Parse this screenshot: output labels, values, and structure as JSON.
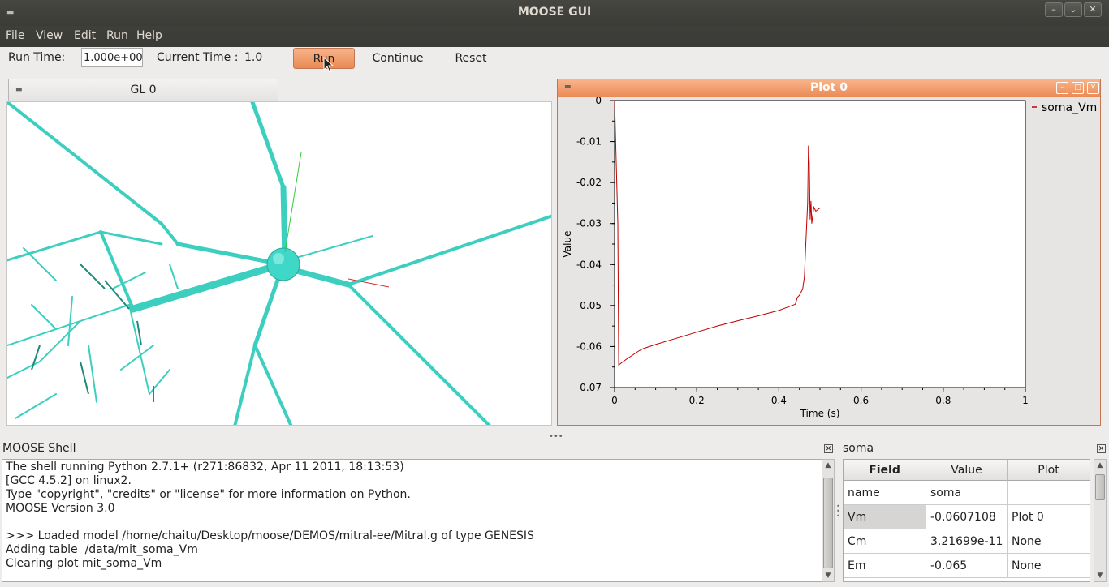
{
  "window": {
    "title": "MOOSE GUI",
    "min": "–",
    "max": "⌄",
    "close": "✕"
  },
  "menu": [
    "File",
    "View",
    "Edit",
    "Run",
    "Help"
  ],
  "toolbar": {
    "run_time_label": "Run Time:",
    "run_time_value": "1.000e+00",
    "current_time_label": "Current Time :",
    "current_time_value": "1.0",
    "run": "Run",
    "continue": "Continue",
    "reset": "Reset"
  },
  "gl": {
    "tab_label": "GL 0"
  },
  "plot": {
    "window_title": "Plot 0"
  },
  "chart_data": {
    "type": "line",
    "title": "",
    "xlabel": "Time (s)",
    "ylabel": "Value",
    "xlim": [
      0,
      1
    ],
    "ylim": [
      -0.07,
      0
    ],
    "xticks": [
      "0",
      "0.2",
      "0.4",
      "0.6",
      "0.8",
      "1"
    ],
    "yticks": [
      "0",
      "-0.01",
      "-0.02",
      "-0.03",
      "-0.04",
      "-0.05",
      "-0.06",
      "-0.07"
    ],
    "grid": false,
    "legend_position": "right",
    "colors": {
      "series": "#c00000"
    },
    "series": [
      {
        "name": "soma_Vm",
        "x": [
          0.0,
          0.008,
          0.01,
          0.03,
          0.06,
          0.07,
          0.1,
          0.15,
          0.2,
          0.25,
          0.3,
          0.35,
          0.4,
          0.44,
          0.445,
          0.45,
          0.458,
          0.462,
          0.465,
          0.47,
          0.472,
          0.474,
          0.476,
          0.478,
          0.48,
          0.485,
          0.49,
          0.5,
          0.52,
          0.55,
          0.6,
          0.7,
          0.8,
          0.9,
          1.0
        ],
        "y": [
          0.0,
          -0.03,
          -0.0645,
          -0.063,
          -0.061,
          -0.0605,
          -0.0595,
          -0.058,
          -0.0565,
          -0.055,
          -0.0537,
          -0.0525,
          -0.0512,
          -0.0497,
          -0.048,
          -0.0475,
          -0.046,
          -0.043,
          -0.036,
          -0.025,
          -0.011,
          -0.015,
          -0.029,
          -0.0245,
          -0.03,
          -0.026,
          -0.027,
          -0.0262,
          -0.0262,
          -0.0262,
          -0.0262,
          -0.0262,
          -0.0262,
          -0.0262,
          -0.0262
        ]
      }
    ]
  },
  "shell": {
    "title": "MOOSE Shell",
    "lines": [
      "The shell running Python 2.7.1+ (r271:86832, Apr 11 2011, 18:13:53)",
      "[GCC 4.5.2] on linux2.",
      "Type \"copyright\", \"credits\" or \"license\" for more information on Python.",
      "MOOSE Version 3.0",
      "",
      ">>> Loaded model /home/chaitu/Desktop/moose/DEMOS/mitral-ee/Mitral.g of type GENESIS",
      "Adding table  /data/mit_soma_Vm",
      "Clearing plot mit_soma_Vm"
    ]
  },
  "properties": {
    "title": "soma",
    "headers": [
      "Field",
      "Value",
      "Plot"
    ],
    "rows": [
      [
        "name",
        "soma",
        ""
      ],
      [
        "Vm",
        "-0.0607108",
        "Plot 0"
      ],
      [
        "Cm",
        "3.21699e-11",
        "None"
      ],
      [
        "Em",
        "-0.065",
        "None"
      ]
    ]
  }
}
